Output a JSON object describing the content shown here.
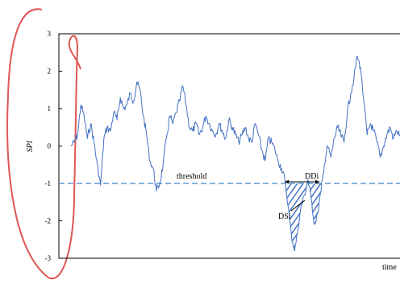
{
  "chart_data": {
    "type": "line",
    "title": "",
    "xlabel": "time",
    "ylabel": "SPI",
    "ylim": [
      -3,
      3
    ],
    "yticks": [
      "3",
      "2",
      "1",
      "0",
      "-1",
      "-2",
      "-3"
    ],
    "grid": false,
    "legend": "none",
    "series": [
      {
        "color": "#4472c4",
        "x": [
          0,
          1,
          2,
          3,
          4,
          5,
          6,
          7,
          8,
          9,
          10,
          11,
          12,
          13,
          14,
          15,
          16,
          17,
          18,
          19,
          20,
          21,
          22,
          23,
          24,
          25,
          26,
          27,
          28,
          29,
          30,
          31,
          32,
          33,
          34,
          35,
          36,
          37,
          38,
          39,
          40,
          41,
          42,
          43,
          44,
          45,
          46,
          47,
          48,
          49,
          50,
          51,
          52,
          53,
          54,
          55,
          56,
          57,
          58,
          59,
          60,
          61,
          62,
          63,
          64,
          65,
          66,
          67,
          68,
          69,
          70,
          71,
          72,
          73,
          74,
          75,
          76,
          77,
          78,
          79,
          80,
          81,
          82,
          83,
          84,
          85,
          86,
          87,
          88,
          89,
          90,
          91,
          92,
          93,
          94,
          95,
          96,
          97,
          98,
          99,
          100
        ],
        "y": [
          0.0,
          0.1,
          0.3,
          1.1,
          0.8,
          0.2,
          0.6,
          0.1,
          -0.5,
          -1.05,
          0.2,
          0.5,
          0.4,
          0.9,
          0.7,
          1.3,
          1.0,
          1.1,
          1.4,
          1.2,
          1.7,
          1.5,
          0.8,
          0.3,
          -0.4,
          -0.6,
          -1.2,
          -1.0,
          -0.5,
          0.2,
          0.8,
          0.6,
          0.9,
          1.2,
          1.6,
          1.1,
          0.5,
          0.4,
          0.6,
          0.3,
          0.5,
          0.8,
          0.6,
          0.4,
          0.3,
          0.6,
          0.4,
          0.2,
          0.7,
          0.5,
          0.3,
          0.1,
          0.3,
          0.5,
          0.2,
          0.1,
          0.6,
          0.3,
          -0.1,
          -0.4,
          0.2,
          0.1,
          -0.1,
          -0.4,
          -0.6,
          -0.9,
          -1.6,
          -2.4,
          -2.8,
          -2.2,
          -1.6,
          -1.3,
          -0.9,
          -1.4,
          -2.1,
          -1.8,
          -1.2,
          -0.5,
          0.0,
          -0.3,
          0.2,
          0.5,
          0.3,
          0.1,
          0.9,
          1.4,
          1.8,
          2.4,
          2.1,
          1.2,
          0.3,
          0.6,
          0.4,
          0.1,
          -0.3,
          0.0,
          0.3,
          0.5,
          0.2,
          0.4,
          0.3
        ]
      }
    ],
    "threshold": {
      "y": -1,
      "label": "threshold",
      "color": "#5b9bd5"
    },
    "annotations": {
      "duration_label": "DDi",
      "severity_label": "DSi"
    }
  }
}
